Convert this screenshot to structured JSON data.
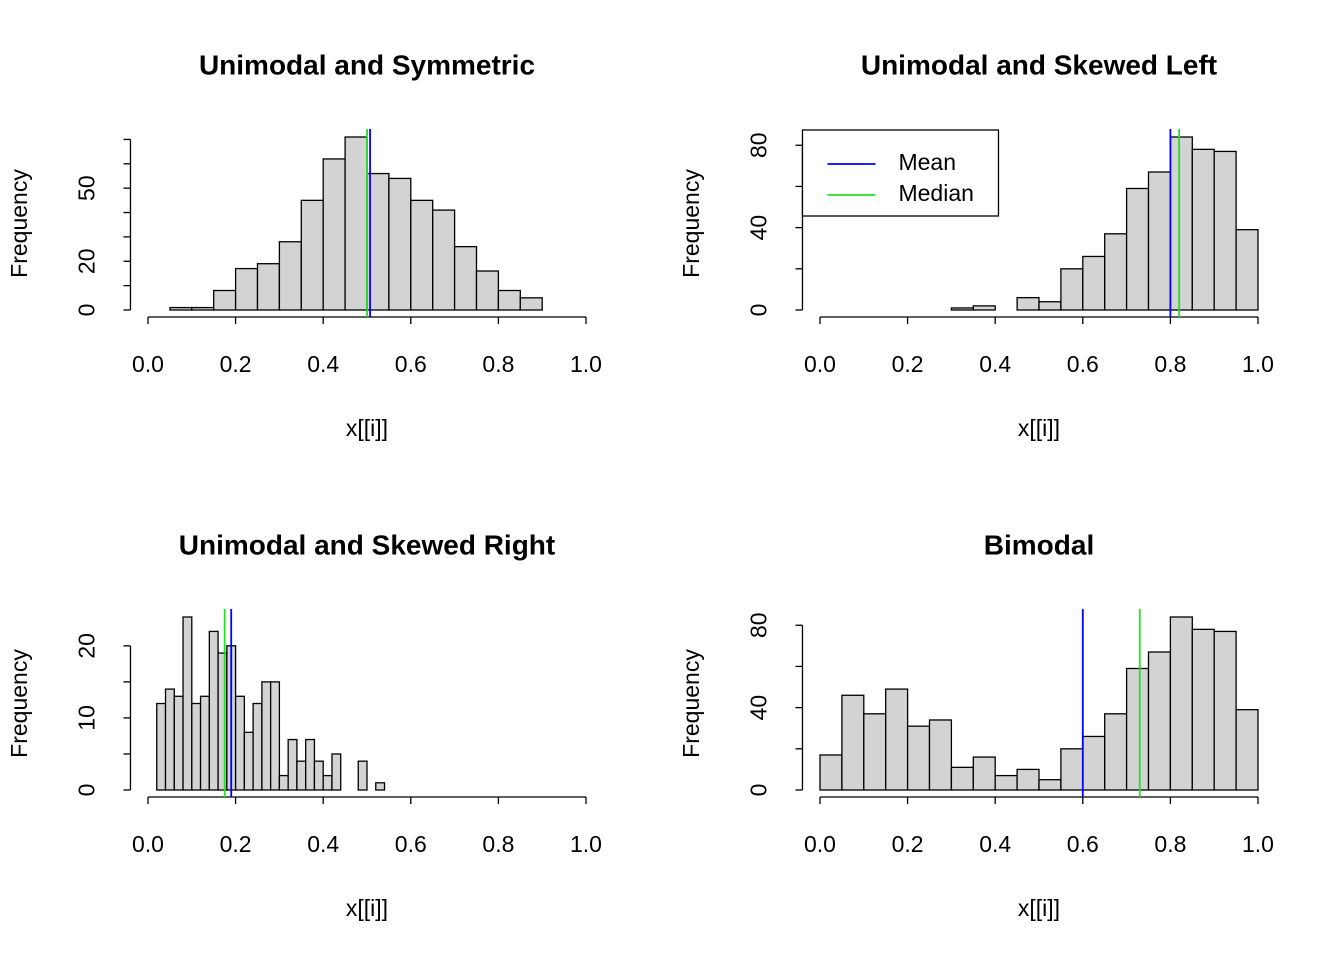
{
  "chart_data": [
    {
      "type": "histogram",
      "title": "Unimodal and Symmetric",
      "x_label": "x[[i]]",
      "y_label": "Frequency",
      "bins": [
        0.05,
        0.1,
        0.15,
        0.2,
        0.25,
        0.3,
        0.35,
        0.4,
        0.45,
        0.5,
        0.55,
        0.6,
        0.65,
        0.7,
        0.75,
        0.8,
        0.85,
        0.9
      ],
      "values": [
        1,
        1,
        8,
        17,
        19,
        28,
        45,
        62,
        71,
        56,
        54,
        45,
        41,
        26,
        16,
        8,
        5
      ],
      "color": "#d3d3d3",
      "xlim": [
        0,
        1
      ],
      "xticks": [
        {
          "value": 0,
          "label": "0.0"
        },
        0.2,
        0.4,
        0.6,
        0.8,
        {
          "value": 1,
          "label": "1.0"
        }
      ],
      "ylim": [
        0,
        71
      ],
      "yticks": [
        0,
        10,
        20,
        30,
        40,
        50,
        60,
        70
      ],
      "lines": [
        {
          "color": "#0000ff",
          "value": 0.507
        },
        {
          "color": "#22e022",
          "value": 0.5
        }
      ]
    },
    {
      "type": "histogram",
      "title": "Unimodal and Skewed Left",
      "x_label": "x[[i]]",
      "y_label": "Frequency",
      "bins": [
        0.3,
        0.35,
        0.4,
        0.45,
        0.5,
        0.55,
        0.6,
        0.65,
        0.7,
        0.75,
        0.8,
        0.85,
        0.9,
        0.95,
        1.0
      ],
      "values": [
        1,
        2,
        0,
        6,
        4,
        20,
        26,
        37,
        59,
        67,
        84,
        78,
        77,
        39
      ],
      "color": "#d3d3d3",
      "xlim": [
        0,
        1
      ],
      "xticks": [
        {
          "value": 0,
          "label": "0.0"
        },
        0.2,
        0.4,
        0.6,
        0.8,
        {
          "value": 1,
          "label": "1.0"
        }
      ],
      "ylim": [
        0,
        84
      ],
      "yticks": [
        0,
        20,
        40,
        60,
        80
      ],
      "lines": [
        {
          "name": "Mean",
          "color": "#0000ff",
          "value": 0.8
        },
        {
          "name": "Median",
          "color": "#22e022",
          "value": 0.82
        }
      ],
      "legend": "topleft"
    },
    {
      "type": "histogram",
      "title": "Unimodal and Skewed Right",
      "x_label": "x[[i]]",
      "y_label": "Frequency",
      "bins": [
        0.02,
        0.04,
        0.06,
        0.08,
        0.1,
        0.12,
        0.14,
        0.16,
        0.18,
        0.2,
        0.22,
        0.24,
        0.26,
        0.28,
        0.3,
        0.32,
        0.34,
        0.36,
        0.38,
        0.4,
        0.42,
        0.44,
        0.46,
        0.48,
        0.5,
        0.52,
        0.54
      ],
      "values": [
        12,
        14,
        13,
        24,
        12,
        13,
        22,
        19,
        20,
        13,
        8,
        12,
        15,
        15,
        2,
        7,
        4,
        7,
        4,
        2,
        5,
        0,
        0,
        4,
        0,
        1
      ],
      "color": "#d3d3d3",
      "xlim": [
        0,
        1
      ],
      "xticks": [
        {
          "value": 0,
          "label": "0.0"
        },
        0.2,
        0.4,
        0.6,
        0.8,
        {
          "value": 1,
          "label": "1.0"
        }
      ],
      "ylim": [
        0,
        24
      ],
      "yticks": [
        0,
        5,
        10,
        15,
        20
      ],
      "lines": [
        {
          "color": "#0000ff",
          "value": 0.19
        },
        {
          "color": "#22e022",
          "value": 0.175
        }
      ]
    },
    {
      "type": "histogram",
      "title": "Bimodal",
      "x_label": "x[[i]]",
      "y_label": "Frequency",
      "bins": [
        0,
        0.05,
        0.1,
        0.15,
        0.2,
        0.25,
        0.3,
        0.35,
        0.4,
        0.45,
        0.5,
        0.55,
        0.6,
        0.65,
        0.7,
        0.75,
        0.8,
        0.85,
        0.9,
        0.95,
        1.0
      ],
      "values": [
        17,
        46,
        37,
        49,
        31,
        34,
        11,
        16,
        7,
        10,
        5,
        20,
        26,
        37,
        59,
        67,
        84,
        78,
        77,
        39
      ],
      "color": "#d3d3d3",
      "xlim": [
        0,
        1
      ],
      "xticks": [
        {
          "value": 0,
          "label": "0.0"
        },
        0.2,
        0.4,
        0.6,
        0.8,
        {
          "value": 1,
          "label": "1.0"
        }
      ],
      "ylim": [
        0,
        84
      ],
      "yticks": [
        0,
        20,
        40,
        60,
        80
      ],
      "lines": [
        {
          "color": "#0000ff",
          "value": 0.6
        },
        {
          "color": "#22e022",
          "value": 0.73
        }
      ]
    }
  ]
}
